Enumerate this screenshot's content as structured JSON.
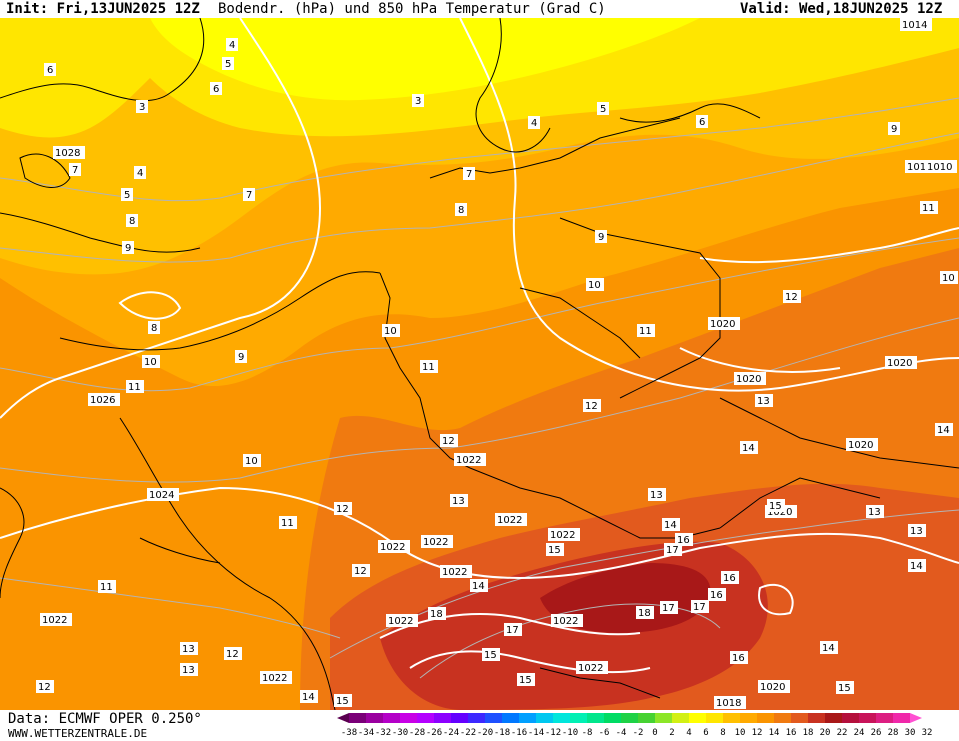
{
  "header": {
    "init": "Init: Fri,13JUN2025 12Z",
    "title": "Bodendr. (hPa) und 850 hPa Temperatur (Grad C)",
    "valid": "Valid: Wed,18JUN2025 12Z"
  },
  "footer": {
    "data_source": "Data: ECMWF OPER 0.250°",
    "website": "WWW.WETTERZENTRALE.DE"
  },
  "colors": {
    "t_le3": "#ffff00",
    "t_4_5": "#ffe600",
    "t_6_7": "#ffc000",
    "t_8_9": "#ffaa00",
    "t_10_11": "#fa9400",
    "t_12_13": "#f07a10",
    "t_14_15": "#e25a1e",
    "t_16_17": "#c83220",
    "t_18_19": "#a81818",
    "isobar": "#ffffff",
    "isotherm": "#b4b4b4",
    "border": "#000000"
  },
  "colorbar": {
    "ticks": [
      "-38",
      "-34",
      "-32",
      "-30",
      "-28",
      "-26",
      "-24",
      "-22",
      "-20",
      "-18",
      "-16",
      "-14",
      "-12",
      "-10",
      "-8",
      "-6",
      "-4",
      "-2",
      "0",
      "2",
      "4",
      "6",
      "8",
      "10",
      "12",
      "14",
      "16",
      "18",
      "20",
      "22",
      "24",
      "26",
      "28",
      "30",
      "32"
    ],
    "colors": [
      "#5a0050",
      "#7a0078",
      "#9a00a0",
      "#b400c8",
      "#c800e6",
      "#b400ff",
      "#8c00ff",
      "#6400ff",
      "#3c28ff",
      "#1e50ff",
      "#0078ff",
      "#00a0ff",
      "#00c8f0",
      "#00e6dc",
      "#00f0b4",
      "#00e68c",
      "#00dc64",
      "#1ed246",
      "#46d232",
      "#8ce628",
      "#d2f014",
      "#ffff00",
      "#ffe600",
      "#ffc000",
      "#ffaa00",
      "#fa9400",
      "#f07a10",
      "#e25a1e",
      "#c83220",
      "#a81818",
      "#b4103c",
      "#c8145a",
      "#dc1e82",
      "#f028aa",
      "#ff50d2"
    ]
  },
  "pressure_labels": [
    "1014",
    "1016",
    "1010",
    "1028",
    "1026",
    "1024",
    "1022",
    "1022",
    "1022",
    "1022",
    "1022",
    "1022",
    "1022",
    "1022",
    "1022",
    "1022",
    "1022",
    "1020",
    "1020",
    "1020",
    "1020",
    "1020",
    "1020",
    "1020",
    "1018",
    "1020"
  ],
  "temperature_labels": [
    "4",
    "5",
    "3",
    "4",
    "5",
    "6",
    "6",
    "7",
    "3",
    "4",
    "5",
    "6",
    "7",
    "8",
    "9",
    "9",
    "10",
    "11",
    "11",
    "12",
    "12",
    "13",
    "14",
    "15",
    "16",
    "17",
    "18",
    "13",
    "14",
    "15",
    "16",
    "17",
    "12",
    "11",
    "10",
    "13",
    "14",
    "15",
    "8",
    "9",
    "10",
    "11",
    "12",
    "12",
    "13",
    "14",
    "15",
    "11",
    "12",
    "13",
    "14",
    "15",
    "16",
    "17",
    "18",
    "7",
    "8",
    "9",
    "10",
    "11",
    "12",
    "13",
    "14",
    "15",
    "16",
    "17",
    "14",
    "15",
    "13",
    "9",
    "10",
    "11"
  ]
}
